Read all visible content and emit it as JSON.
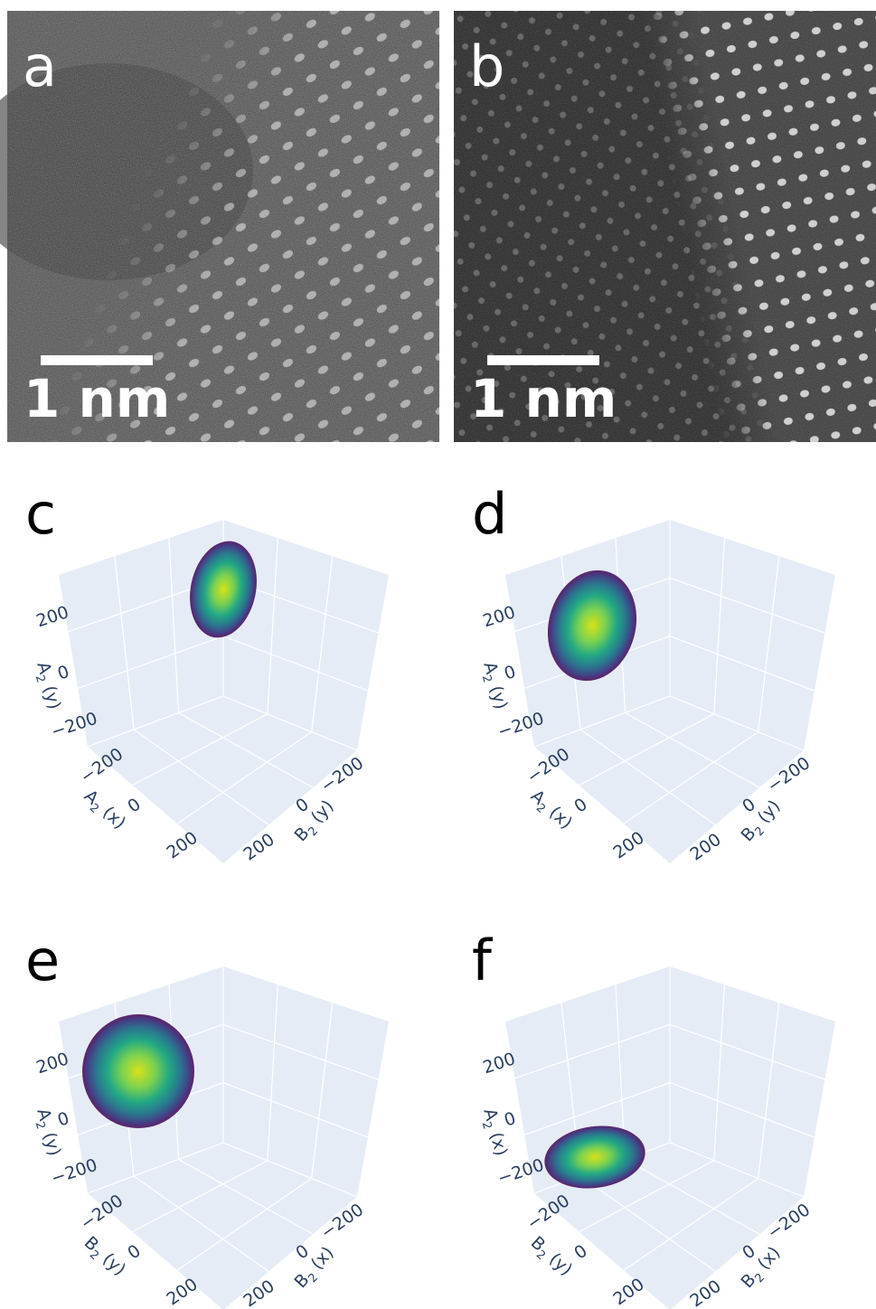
{
  "panels": [
    {
      "label": "a",
      "scale_bar": "1 nm"
    },
    {
      "label": "b",
      "scale_bar": "1 nm"
    },
    {
      "label": "c",
      "axes": [
        {
          "base": "A",
          "sub": "2",
          "suffix": " (y)",
          "ticks": [
            "200",
            "0",
            "−200"
          ]
        },
        {
          "base": "A",
          "sub": "2",
          "suffix": " (x)",
          "ticks": [
            "−200",
            "0",
            "200"
          ]
        },
        {
          "base": "B",
          "sub": "2",
          "suffix": " (y)",
          "ticks": [
            "−200",
            "0",
            "200"
          ]
        }
      ]
    },
    {
      "label": "d",
      "axes": [
        {
          "base": "A",
          "sub": "2",
          "suffix": " (y)",
          "ticks": [
            "200",
            "0",
            "−200"
          ]
        },
        {
          "base": "A",
          "sub": "2",
          "suffix": " (x)",
          "ticks": [
            "−200",
            "0",
            "200"
          ]
        },
        {
          "base": "B",
          "sub": "2",
          "suffix": " (y)",
          "ticks": [
            "−200",
            "0",
            "200"
          ]
        }
      ]
    },
    {
      "label": "e",
      "axes": [
        {
          "base": "A",
          "sub": "2",
          "suffix": " (y)",
          "ticks": [
            "200",
            "0",
            "−200"
          ]
        },
        {
          "base": "B",
          "sub": "2",
          "suffix": " (y)",
          "ticks": [
            "−200",
            "0",
            "200"
          ]
        },
        {
          "base": "B",
          "sub": "2",
          "suffix": " (x)",
          "ticks": [
            "−200",
            "0",
            "200"
          ]
        }
      ]
    },
    {
      "label": "f",
      "axes": [
        {
          "base": "A",
          "sub": "2",
          "suffix": " (x)",
          "ticks": [
            "200",
            "0",
            "−200"
          ]
        },
        {
          "base": "B",
          "sub": "2",
          "suffix": " (y)",
          "ticks": [
            "−200",
            "0",
            "200"
          ]
        },
        {
          "base": "B",
          "sub": "2",
          "suffix": " (x)",
          "ticks": [
            "−200",
            "0",
            "200"
          ]
        }
      ]
    }
  ]
}
